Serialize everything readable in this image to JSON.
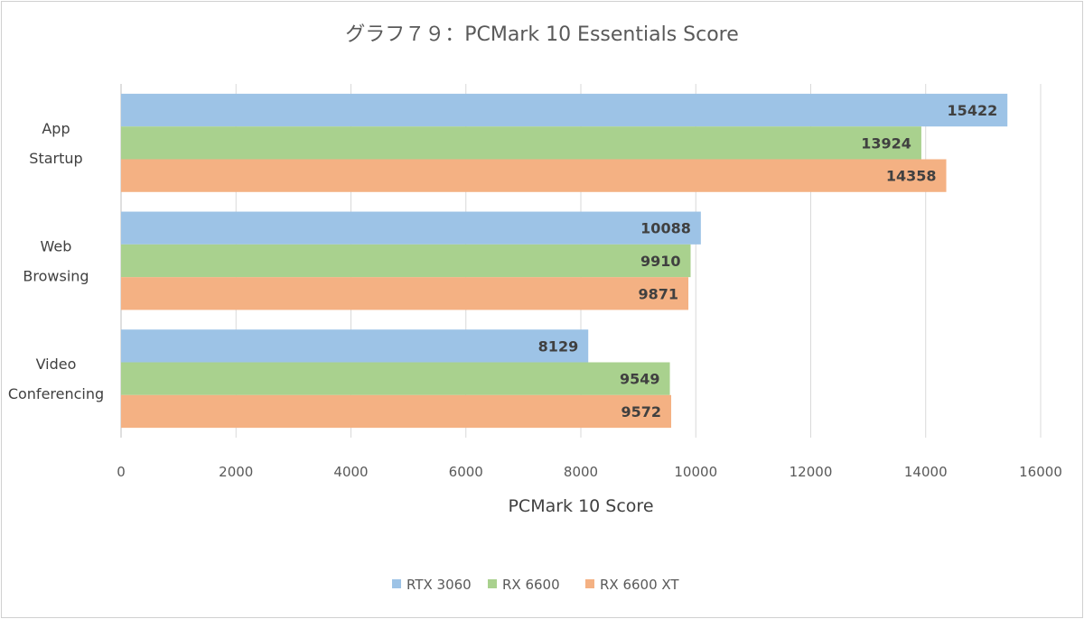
{
  "chart_data": {
    "type": "bar",
    "orientation": "horizontal",
    "title": "グラフ７９：PCMark 10 Essentials Score",
    "xlabel": "PCMark 10 Score",
    "ylabel": "",
    "categories": [
      [
        "App",
        "Startup"
      ],
      [
        "Web",
        "Browsing"
      ],
      [
        "Video",
        "Conferencing"
      ]
    ],
    "series": [
      {
        "name": "RTX 3060",
        "color": "#9dc3e6",
        "values": [
          15422,
          10088,
          8129
        ]
      },
      {
        "name": "RX 6600",
        "color": "#a9d18e",
        "values": [
          13924,
          9910,
          9549
        ]
      },
      {
        "name": "RX 6600 XT",
        "color": "#f4b183",
        "values": [
          14358,
          9871,
          9572
        ]
      }
    ],
    "xlim": [
      0,
      16000
    ],
    "xticks": [
      0,
      2000,
      4000,
      6000,
      8000,
      10000,
      12000,
      14000,
      16000
    ],
    "grid": true,
    "legend_position": "bottom"
  }
}
